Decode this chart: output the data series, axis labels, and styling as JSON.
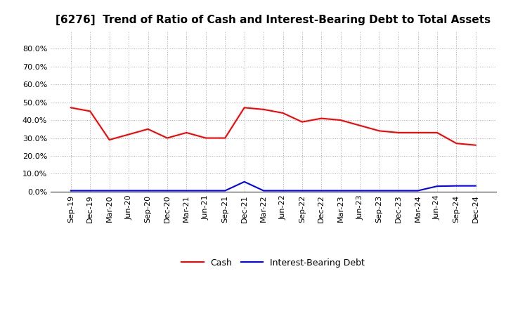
{
  "title": "[6276]  Trend of Ratio of Cash and Interest-Bearing Debt to Total Assets",
  "x_labels": [
    "Sep-19",
    "Dec-19",
    "Mar-20",
    "Jun-20",
    "Sep-20",
    "Dec-20",
    "Mar-21",
    "Jun-21",
    "Sep-21",
    "Dec-21",
    "Mar-22",
    "Jun-22",
    "Sep-22",
    "Dec-22",
    "Mar-23",
    "Jun-23",
    "Sep-23",
    "Dec-23",
    "Mar-24",
    "Jun-24",
    "Sep-24",
    "Dec-24"
  ],
  "cash": [
    0.47,
    0.45,
    0.29,
    0.32,
    0.35,
    0.3,
    0.33,
    0.3,
    0.3,
    0.47,
    0.46,
    0.44,
    0.39,
    0.41,
    0.4,
    0.37,
    0.34,
    0.33,
    0.33,
    0.33,
    0.27,
    0.26
  ],
  "interest_bearing_debt": [
    0.005,
    0.005,
    0.005,
    0.005,
    0.005,
    0.005,
    0.005,
    0.005,
    0.005,
    0.055,
    0.005,
    0.005,
    0.005,
    0.005,
    0.005,
    0.005,
    0.005,
    0.005,
    0.005,
    0.03,
    0.032,
    0.032
  ],
  "cash_color": "#ff0000",
  "debt_color": "#0000ff",
  "ylim": [
    0.0,
    0.9
  ],
  "yticks": [
    0.0,
    0.1,
    0.2,
    0.3,
    0.4,
    0.5,
    0.6,
    0.7,
    0.8
  ],
  "legend_cash": "Cash",
  "legend_debt": "Interest-Bearing Debt",
  "background_color": "#ffffff",
  "grid_color": "#aaaaaa",
  "title_fontsize": 11,
  "tick_fontsize": 8,
  "legend_fontsize": 9
}
